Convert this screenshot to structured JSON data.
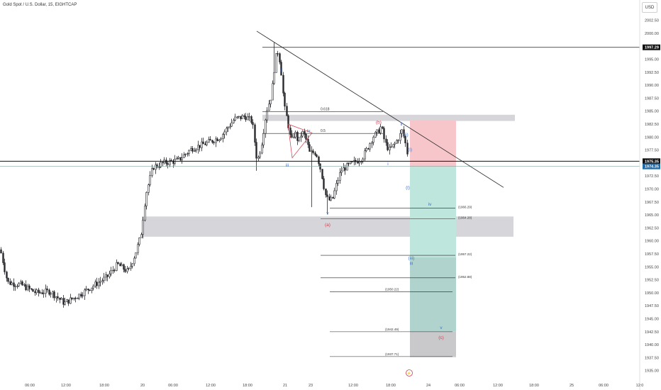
{
  "symbol_title": "Gold Spot / U.S. Dollar, 15, EIGHTCAP",
  "currency": "USD",
  "colors": {
    "up": "#26262b",
    "down": "#26262b",
    "wave_blue": "#3f6fd1",
    "wave_red": "#d63b4d",
    "supply_zone": "#d6d6da",
    "stop_zone": "#f7c6ca",
    "target_zone": "#bfe6dc",
    "gray_target": "#c9c9cc"
  },
  "chart_data": {
    "type": "candlestick",
    "title": "Gold Spot / U.S. Dollar, 15, EIGHTCAP",
    "ylim": [
      1933.5,
      2006
    ],
    "y_ticks": [
      "2002.50",
      "2000.00",
      "1997.50",
      "1995.00",
      "1992.50",
      "1990.00",
      "1987.50",
      "1985.00",
      "1982.50",
      "1980.00",
      "1977.50",
      "1975.00",
      "1972.50",
      "1970.00",
      "1967.50",
      "1965.00",
      "1962.50",
      "1960.00",
      "1957.50",
      "1955.00",
      "1952.50",
      "1950.00",
      "1947.50",
      "1945.00",
      "1942.50",
      "1940.00",
      "1937.50",
      "1935.00"
    ],
    "x_ticks": [
      "06:00",
      "12:00",
      "18:00",
      "20",
      "06:00",
      "12:00",
      "18:00",
      "21",
      "23",
      "12:00",
      "18:00",
      "24",
      "06:00",
      "12:00",
      "18:00",
      "25",
      "06:00",
      "12:0"
    ],
    "price_labels": {
      "high_line": "1997.29",
      "current": "1975.35",
      "current2": "1974.35"
    },
    "levels": [
      {
        "label": "0.618",
        "price": 1984.9
      },
      {
        "label": "0.5",
        "price": 1980.7
      }
    ],
    "targets": [
      {
        "label": "(1966.29)",
        "price": 1966.29
      },
      {
        "label": "(1964.28)",
        "price": 1964.28
      },
      {
        "label": "(1957.22)",
        "price": 1957.22
      },
      {
        "label": "(1952.88)",
        "price": 1952.88
      },
      {
        "label": "(1950.22)",
        "price": 1950.22
      },
      {
        "label": "(1942.49)",
        "price": 1942.49
      },
      {
        "label": "(1937.71)",
        "price": 1937.71
      }
    ],
    "waves": [
      {
        "text": "ii",
        "color": "blue",
        "x": 397,
        "price": 1992.6
      },
      {
        "text": "iv",
        "color": "blue",
        "x": 435,
        "price": 1980.9
      },
      {
        "text": "iii",
        "color": "blue",
        "x": 405,
        "price": 1974.3
      },
      {
        "text": "v",
        "color": "blue",
        "x": 462,
        "price": 1965.1
      },
      {
        "text": "(a)",
        "color": "red",
        "x": 462,
        "price": 1962.8
      },
      {
        "text": "(b)",
        "color": "red",
        "x": 534,
        "price": 1982.6
      },
      {
        "text": "ii",
        "color": "blue",
        "x": 566,
        "price": 1982.2
      },
      {
        "text": "(ii)",
        "color": "blue",
        "x": 572,
        "price": 1980.2
      },
      {
        "text": "i",
        "color": "blue",
        "x": 547,
        "price": 1974.6
      },
      {
        "text": "(i)",
        "color": "blue",
        "x": 578,
        "price": 1977.3
      },
      {
        "text": "(i)",
        "color": "blue",
        "x": 575,
        "price": 1970.0
      },
      {
        "text": "iv",
        "color": "blue",
        "x": 606,
        "price": 1966.8
      },
      {
        "text": "(iii)",
        "color": "blue",
        "x": 580,
        "price": 1956.4
      },
      {
        "text": "iii",
        "color": "blue",
        "x": 580,
        "price": 1955.4
      },
      {
        "text": "v",
        "color": "blue",
        "x": 622,
        "price": 1943.0
      },
      {
        "text": "(c)",
        "color": "red",
        "x": 622,
        "price": 1941.1
      }
    ],
    "footer_mark": "⚡"
  }
}
